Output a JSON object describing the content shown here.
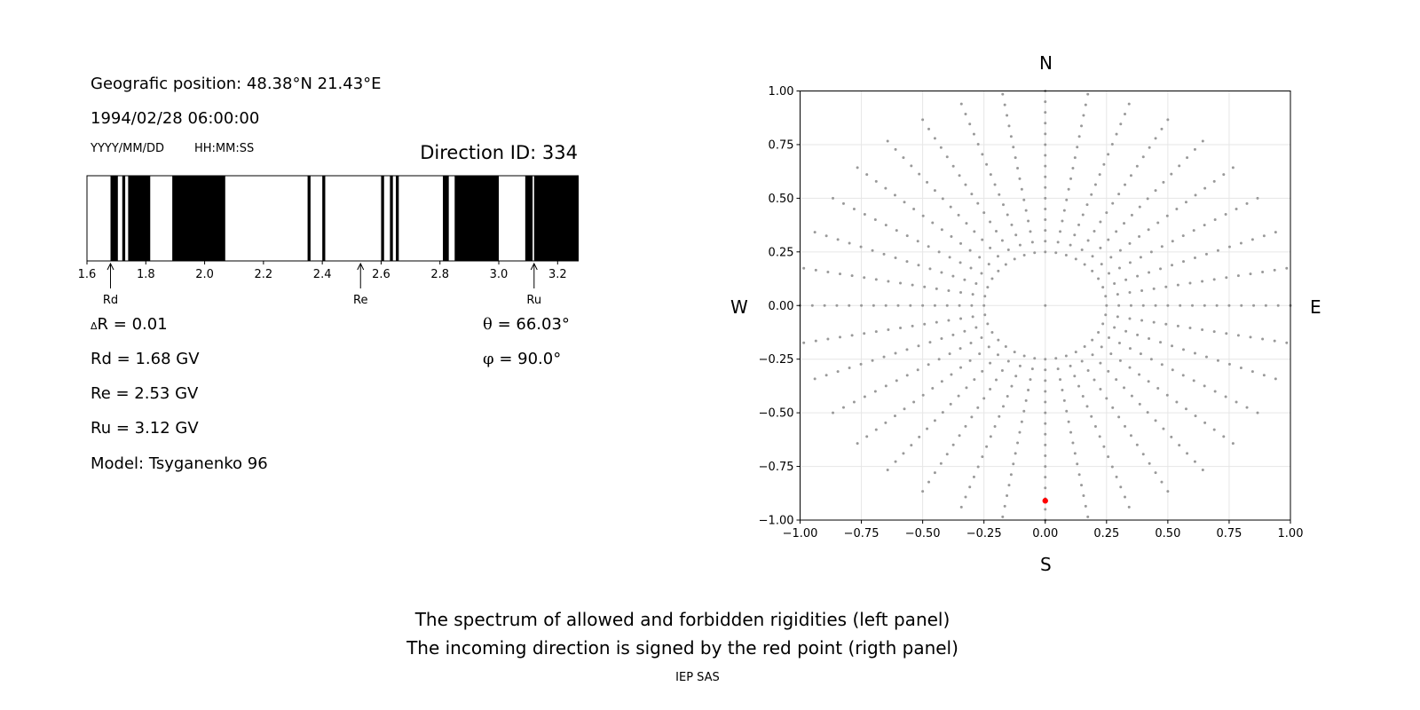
{
  "left_panel": {
    "position": "Geografic position: 48.38°N 21.43°E",
    "datetime": "1994/02/28 06:00:00",
    "date_format": "YYYY/MM/DD",
    "time_format": "HH:MM:SS",
    "direction_id": "Direction ID: 334",
    "stats": {
      "delta_r_symbol": "Δ",
      "delta_r": "R = 0.01",
      "rd": "Rd = 1.68 GV",
      "re": "Re = 2.53 GV",
      "ru": "Ru = 3.12 GV",
      "model": "Model: Tsyganenko 96",
      "theta_symbol": "θ",
      "theta": " = 66.03°",
      "phi_symbol": "φ",
      "phi": " = 90.0°"
    }
  },
  "right_panel": {
    "compass": {
      "north": "N",
      "south": "S",
      "west": "W",
      "east": "E"
    }
  },
  "caption": {
    "line1": "The spectrum of allowed and forbidden rigidities (left panel)",
    "line2": "The incoming direction is signed by the red point (rigth panel)",
    "credit": "IEP SAS"
  },
  "chart_data": [
    {
      "type": "bar",
      "description_kind": "rigidity spectrum strip",
      "xlim": [
        1.6,
        3.27
      ],
      "ticks": [
        "1.6",
        "1.8",
        "2.0",
        "2.2",
        "2.4",
        "2.6",
        "2.8",
        "3.0",
        "3.2"
      ],
      "tick_values": [
        1.6,
        1.8,
        2.0,
        2.2,
        2.4,
        2.6,
        2.8,
        3.0,
        3.2
      ],
      "forbidden_intervals": [
        [
          1.68,
          1.705
        ],
        [
          1.72,
          1.73
        ],
        [
          1.74,
          1.815
        ],
        [
          1.89,
          2.07
        ],
        [
          2.35,
          2.36
        ],
        [
          2.4,
          2.41
        ],
        [
          2.6,
          2.61
        ],
        [
          2.63,
          2.64
        ],
        [
          2.65,
          2.66
        ],
        [
          2.81,
          2.83
        ],
        [
          2.85,
          3.0
        ],
        [
          3.09,
          3.115
        ],
        [
          3.12,
          3.27
        ]
      ],
      "markers": [
        {
          "label": "Rd",
          "value": 1.68
        },
        {
          "label": "Re",
          "value": 2.53
        },
        {
          "label": "Ru",
          "value": 3.12
        }
      ],
      "colors": {
        "forbidden": "#000000",
        "allowed": "#ffffff"
      }
    },
    {
      "type": "scatter",
      "xlim": [
        -1.0,
        1.0
      ],
      "ylim": [
        -1.0,
        1.0
      ],
      "xticks": [
        "−1.00",
        "−0.75",
        "−0.50",
        "−0.25",
        "0.00",
        "0.25",
        "0.50",
        "0.75",
        "1.00"
      ],
      "yticks": [
        "1.00",
        "0.75",
        "0.50",
        "0.25",
        "0.00",
        "−0.25",
        "−0.50",
        "−0.75",
        "−1.00"
      ],
      "tick_values": [
        -1.0,
        -0.75,
        -0.5,
        -0.25,
        0.0,
        0.25,
        0.5,
        0.75,
        1.0
      ],
      "grid": true,
      "grid_series": {
        "radii": [
          0.0,
          0.25,
          0.3,
          0.35,
          0.4,
          0.45,
          0.5,
          0.55,
          0.6,
          0.65,
          0.7,
          0.75,
          0.8,
          0.85,
          0.9,
          0.95,
          1.0
        ],
        "directions": 36,
        "color": "#999999"
      },
      "highlight": {
        "x": 0.0,
        "y": -0.91,
        "color": "#ff0000"
      }
    }
  ]
}
